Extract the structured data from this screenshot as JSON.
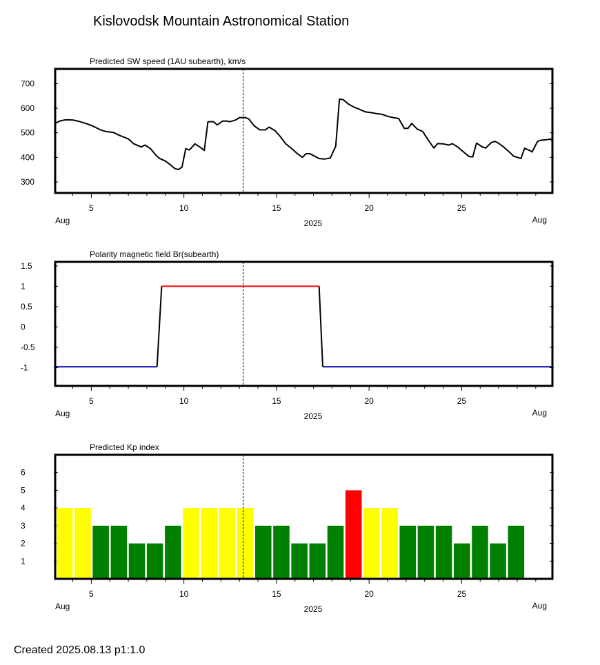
{
  "title": "Kislovodsk Mountain Astronomical Station",
  "footer": "Created  2025.08.13    p1:1.0",
  "colors": {
    "positive": "#ff0000",
    "negative": "#0000aa",
    "kp_quiet": "#008000",
    "kp_active": "#ffff00",
    "kp_storm": "#ff0000"
  },
  "chart_data": [
    {
      "type": "line",
      "title": "Predicted SW speed (1AU subearth), km/s",
      "x_unit": "day of August 2025",
      "xlim": [
        3.05,
        29.9
      ],
      "ylim": [
        255,
        760
      ],
      "yticks": [
        300,
        400,
        500,
        600,
        700
      ],
      "xticks": [
        5,
        10,
        15,
        20,
        25
      ],
      "x_month_label_left": "Aug",
      "x_month_label_right": "Aug",
      "x_year_label": "2025",
      "marker_day": 13.2,
      "points": [
        [
          3.05,
          538
        ],
        [
          3.3,
          548
        ],
        [
          3.6,
          553
        ],
        [
          4.0,
          552
        ],
        [
          4.3,
          547
        ],
        [
          4.7,
          538
        ],
        [
          5.0,
          530
        ],
        [
          5.5,
          512
        ],
        [
          5.8,
          505
        ],
        [
          6.2,
          501
        ],
        [
          6.5,
          490
        ],
        [
          7.0,
          475
        ],
        [
          7.3,
          455
        ],
        [
          7.7,
          442
        ],
        [
          7.9,
          450
        ],
        [
          8.2,
          435
        ],
        [
          8.5,
          408
        ],
        [
          8.7,
          395
        ],
        [
          9.0,
          385
        ],
        [
          9.3,
          368
        ],
        [
          9.5,
          355
        ],
        [
          9.7,
          350
        ],
        [
          9.9,
          360
        ],
        [
          10.1,
          435
        ],
        [
          10.3,
          430
        ],
        [
          10.6,
          455
        ],
        [
          10.9,
          440
        ],
        [
          11.1,
          428
        ],
        [
          11.3,
          545
        ],
        [
          11.6,
          545
        ],
        [
          11.8,
          532
        ],
        [
          12.1,
          548
        ],
        [
          12.3,
          548
        ],
        [
          12.5,
          545
        ],
        [
          12.8,
          552
        ],
        [
          13.0,
          562
        ],
        [
          13.3,
          562
        ],
        [
          13.5,
          557
        ],
        [
          13.8,
          528
        ],
        [
          14.1,
          512
        ],
        [
          14.4,
          512
        ],
        [
          14.6,
          523
        ],
        [
          14.9,
          510
        ],
        [
          15.2,
          485
        ],
        [
          15.5,
          455
        ],
        [
          15.8,
          437
        ],
        [
          16.1,
          417
        ],
        [
          16.4,
          400
        ],
        [
          16.6,
          415
        ],
        [
          16.8,
          415
        ],
        [
          17.0,
          407
        ],
        [
          17.3,
          395
        ],
        [
          17.6,
          393
        ],
        [
          17.9,
          397
        ],
        [
          18.2,
          445
        ],
        [
          18.4,
          637
        ],
        [
          18.6,
          635
        ],
        [
          18.9,
          616
        ],
        [
          19.2,
          604
        ],
        [
          19.5,
          595
        ],
        [
          19.8,
          585
        ],
        [
          20.1,
          582
        ],
        [
          20.4,
          578
        ],
        [
          20.7,
          575
        ],
        [
          21.0,
          567
        ],
        [
          21.3,
          562
        ],
        [
          21.6,
          558
        ],
        [
          21.9,
          518
        ],
        [
          22.1,
          518
        ],
        [
          22.3,
          538
        ],
        [
          22.6,
          515
        ],
        [
          22.9,
          505
        ],
        [
          23.2,
          470
        ],
        [
          23.5,
          438
        ],
        [
          23.7,
          456
        ],
        [
          24.0,
          455
        ],
        [
          24.3,
          450
        ],
        [
          24.5,
          456
        ],
        [
          24.8,
          441
        ],
        [
          25.1,
          422
        ],
        [
          25.4,
          403
        ],
        [
          25.6,
          402
        ],
        [
          25.8,
          458
        ],
        [
          26.1,
          443
        ],
        [
          26.3,
          438
        ],
        [
          26.6,
          460
        ],
        [
          26.8,
          465
        ],
        [
          27.0,
          457
        ],
        [
          27.3,
          440
        ],
        [
          27.6,
          420
        ],
        [
          27.8,
          405
        ],
        [
          28.2,
          395
        ],
        [
          28.4,
          437
        ],
        [
          28.7,
          427
        ],
        [
          28.8,
          422
        ],
        [
          29.1,
          465
        ],
        [
          29.3,
          470
        ],
        [
          29.6,
          472
        ],
        [
          29.8,
          475
        ],
        [
          29.9,
          465
        ]
      ]
    },
    {
      "type": "line",
      "title": "Polarity magnetic field  Br(subearth)",
      "xlim": [
        3.05,
        29.9
      ],
      "ylim": [
        -1.45,
        1.6
      ],
      "yticks": [
        1.5,
        1,
        0.5,
        0,
        -0.5,
        -1
      ],
      "ytick_labels": [
        "1.5",
        "1",
        "0.5",
        "0",
        "-0.5",
        "-1"
      ],
      "xticks": [
        5,
        10,
        15,
        20,
        25
      ],
      "x_month_label_left": "Aug",
      "x_month_label_right": "Aug",
      "x_year_label": "2025",
      "marker_day": 13.2,
      "series": [
        {
          "polarity": "negative",
          "color": "#0000aa",
          "points": [
            [
              3.05,
              -0.98
            ],
            [
              8.55,
              -0.98
            ]
          ]
        },
        {
          "polarity": "transition",
          "color": "#000000",
          "points": [
            [
              8.55,
              -0.98
            ],
            [
              8.8,
              1.0
            ]
          ]
        },
        {
          "polarity": "positive",
          "color": "#ff0000",
          "points": [
            [
              8.8,
              1.0
            ],
            [
              17.3,
              1.0
            ]
          ]
        },
        {
          "polarity": "transition",
          "color": "#000000",
          "points": [
            [
              17.3,
              1.0
            ],
            [
              17.5,
              -0.98
            ]
          ]
        },
        {
          "polarity": "negative",
          "color": "#0000aa",
          "points": [
            [
              17.5,
              -0.98
            ],
            [
              29.9,
              -0.98
            ]
          ]
        }
      ]
    },
    {
      "type": "bar",
      "title": "Predicted Kp index",
      "xlim": [
        3.05,
        29.9
      ],
      "ylim": [
        0,
        7
      ],
      "yticks": [
        1,
        2,
        3,
        4,
        5,
        6
      ],
      "xticks": [
        5,
        10,
        15,
        20,
        25
      ],
      "x_month_label_left": "Aug",
      "x_month_label_right": "Aug",
      "x_year_label": "2025",
      "marker_day": 13.2,
      "bar_start": 3.125,
      "bar_step": 0.975,
      "values": [
        4,
        4,
        3,
        3,
        2,
        2,
        3,
        4,
        4,
        4,
        4,
        3,
        3,
        2,
        2,
        3,
        5,
        4,
        4,
        3,
        3,
        3,
        2,
        3,
        2,
        3
      ]
    }
  ]
}
